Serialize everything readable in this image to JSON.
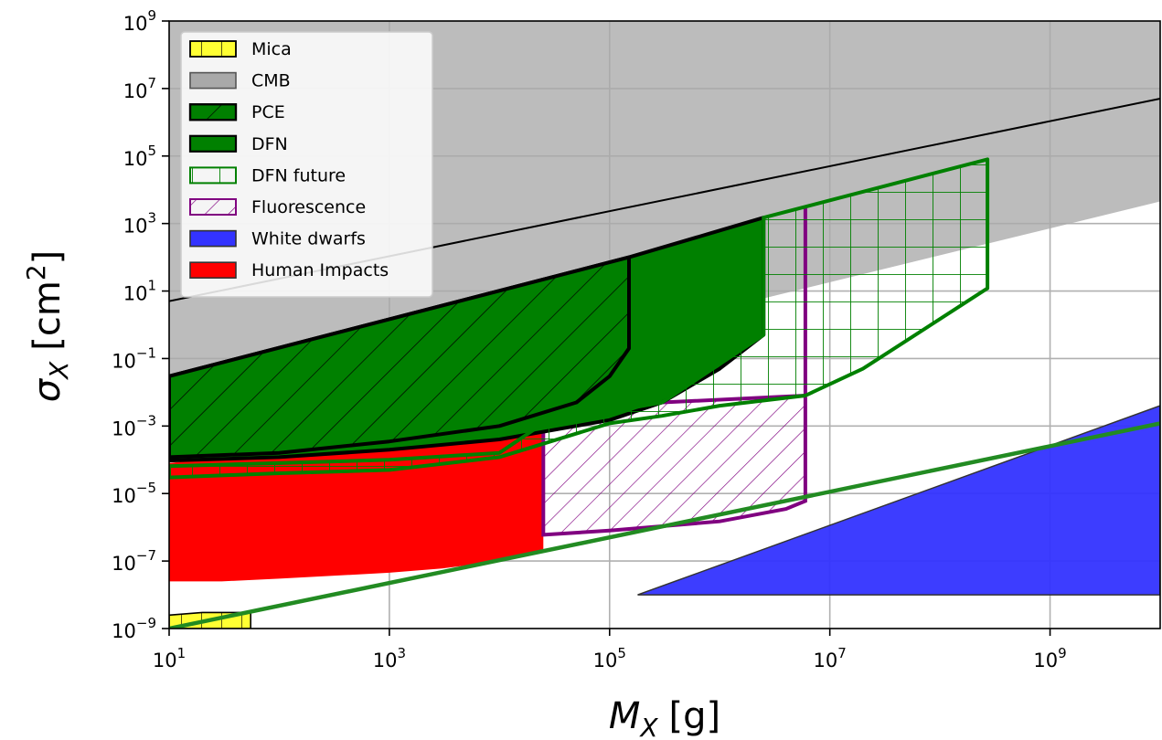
{
  "chart_data": {
    "type": "area",
    "x_scale": "log",
    "y_scale": "log",
    "xlim": [
      10,
      10000000000
    ],
    "ylim": [
      1e-09,
      1000000000.0
    ],
    "grid": true,
    "legend_position": "top-left",
    "xlabel": {
      "base": "M",
      "sub": "X",
      "unit": "[g]"
    },
    "ylabel": {
      "base": "σ",
      "sub": "X",
      "unit_pre": "[cm",
      "unit_sup": "2",
      "unit_post": "]"
    },
    "x_ticks": [
      {
        "value": 10,
        "base": "10",
        "exp": "1"
      },
      {
        "value": 1000,
        "base": "10",
        "exp": "3"
      },
      {
        "value": 100000,
        "base": "10",
        "exp": "5"
      },
      {
        "value": 10000000,
        "base": "10",
        "exp": "7"
      },
      {
        "value": 1000000000,
        "base": "10",
        "exp": "9"
      }
    ],
    "y_ticks": [
      {
        "value": 1e-09,
        "base": "10",
        "exp": "−9"
      },
      {
        "value": 1e-07,
        "base": "10",
        "exp": "−7"
      },
      {
        "value": 1e-05,
        "base": "10",
        "exp": "−5"
      },
      {
        "value": 0.001,
        "base": "10",
        "exp": "−3"
      },
      {
        "value": 0.1,
        "base": "10",
        "exp": "−1"
      },
      {
        "value": 10,
        "base": "10",
        "exp": "1"
      },
      {
        "value": 1000,
        "base": "10",
        "exp": "3"
      },
      {
        "value": 100000,
        "base": "10",
        "exp": "5"
      },
      {
        "value": 10000000,
        "base": "10",
        "exp": "7"
      },
      {
        "value": 1000000000,
        "base": "10",
        "exp": "9"
      }
    ],
    "colors": {
      "mica": "#ffff33",
      "cmb": "#a9a9a9",
      "pce": "#008000",
      "dfn": "#008000",
      "dfn_future": "#008000",
      "fluorescence": "#800080",
      "white_dwarfs": "#3333ff",
      "human_impacts": "#ff0000"
    },
    "legend": [
      {
        "key": "mica",
        "label": "Mica",
        "style": "hatch-vertical"
      },
      {
        "key": "cmb",
        "label": "CMB",
        "style": "solid-gray"
      },
      {
        "key": "pce",
        "label": "PCE",
        "style": "hatch-diagonal"
      },
      {
        "key": "dfn",
        "label": "DFN",
        "style": "solid-green"
      },
      {
        "key": "dfn_future",
        "label": "DFN future",
        "style": "grid-green"
      },
      {
        "key": "fluorescence",
        "label": "Fluorescence",
        "style": "hatch-purple"
      },
      {
        "key": "white_dwarfs",
        "label": "White dwarfs",
        "style": "solid-blue"
      },
      {
        "key": "human_impacts",
        "label": "Human Impacts",
        "style": "solid-red"
      }
    ],
    "series": [
      {
        "key": "cmb",
        "label": "CMB",
        "upper": [
          [
            10,
            1000000000.0
          ],
          [
            10000000000,
            1000000000.0
          ]
        ],
        "lower": [
          [
            10,
            0.0003
          ],
          [
            10000000000,
            4500
          ]
        ]
      },
      {
        "key": "white_dwarfs",
        "label": "White dwarfs",
        "polygon": [
          [
            180000,
            1e-08
          ],
          [
            10000000000,
            0.004
          ],
          [
            10000000000,
            1e-08
          ]
        ]
      },
      {
        "key": "human_impacts",
        "label": "Human Impacts",
        "polygon": [
          [
            10,
            8e-05
          ],
          [
            30,
            0.00012
          ],
          [
            100,
            0.00016
          ],
          [
            300,
            0.0002
          ],
          [
            1000,
            0.00028
          ],
          [
            3000,
            0.0004
          ],
          [
            10000,
            0.0006
          ],
          [
            25000,
            0.0012
          ],
          [
            25000,
            2e-07
          ],
          [
            10000,
            1e-07
          ],
          [
            3000,
            6e-08
          ],
          [
            1000,
            4.5e-08
          ],
          [
            100,
            3e-08
          ],
          [
            30,
            2.5e-08
          ],
          [
            10,
            2.5e-08
          ]
        ]
      },
      {
        "key": "mica",
        "label": "Mica",
        "polygon": [
          [
            10,
            2.5e-09
          ],
          [
            20,
            3e-09
          ],
          [
            55,
            3e-09
          ],
          [
            55,
            1e-09
          ],
          [
            10,
            1e-09
          ]
        ]
      },
      {
        "key": "fluorescence",
        "label": "Fluorescence",
        "polygon": [
          [
            25000,
            0.0012
          ],
          [
            300000,
            0.005
          ],
          [
            6000000,
            0.008
          ],
          [
            6000000,
            3000
          ],
          [
            6000000,
            6e-06
          ],
          [
            4000000,
            3.5e-06
          ],
          [
            1000000,
            1.5e-06
          ],
          [
            100000,
            8e-07
          ],
          [
            25000,
            6e-07
          ]
        ]
      },
      {
        "key": "dfn",
        "label": "DFN",
        "polygon": [
          [
            10,
            9.5e-05
          ],
          [
            100,
            0.00012
          ],
          [
            1000,
            0.0002
          ],
          [
            10000,
            0.0004
          ],
          [
            100000,
            0.0015
          ],
          [
            300000,
            0.005
          ],
          [
            1000000,
            0.05
          ],
          [
            2500000,
            0.5
          ],
          [
            2500000,
            1500
          ],
          [
            150000,
            100
          ],
          [
            10,
            0.03
          ]
        ]
      },
      {
        "key": "pce",
        "label": "PCE",
        "polygon": [
          [
            10,
            0.00012
          ],
          [
            100,
            0.00016
          ],
          [
            1000,
            0.00035
          ],
          [
            10000,
            0.001
          ],
          [
            50000,
            0.005
          ],
          [
            100000,
            0.03
          ],
          [
            150000,
            0.2
          ],
          [
            150000,
            100
          ],
          [
            10,
            0.03
          ]
        ]
      },
      {
        "key": "dfn_future",
        "label": "DFN future",
        "polygon": [
          [
            2500000,
            1500
          ],
          [
            270000000,
            80000
          ],
          [
            270000000,
            12
          ],
          [
            20000000,
            0.05
          ],
          [
            6000000,
            0.008
          ],
          [
            1000000,
            0.004
          ],
          [
            300000,
            0.002
          ],
          [
            100000,
            0.0012
          ],
          [
            25000,
            0.0003
          ],
          [
            10000,
            0.00012
          ],
          [
            1000,
            5e-05
          ],
          [
            100,
            4e-05
          ],
          [
            10,
            3e-05
          ],
          [
            10,
            6.5e-05
          ],
          [
            100,
            8e-05
          ],
          [
            1000,
            0.0001
          ],
          [
            10000,
            0.00016
          ],
          [
            25000,
            0.0012
          ],
          [
            300000,
            0.005
          ],
          [
            2500000,
            0.5
          ]
        ]
      },
      {
        "key": "ref_line_black",
        "label": "",
        "line": [
          [
            10,
            5
          ],
          [
            10000000000,
            5000000
          ]
        ]
      },
      {
        "key": "ref_line_green",
        "label": "",
        "line": [
          [
            10,
            1e-09
          ],
          [
            10000000000,
            0.0012
          ]
        ]
      }
    ]
  }
}
